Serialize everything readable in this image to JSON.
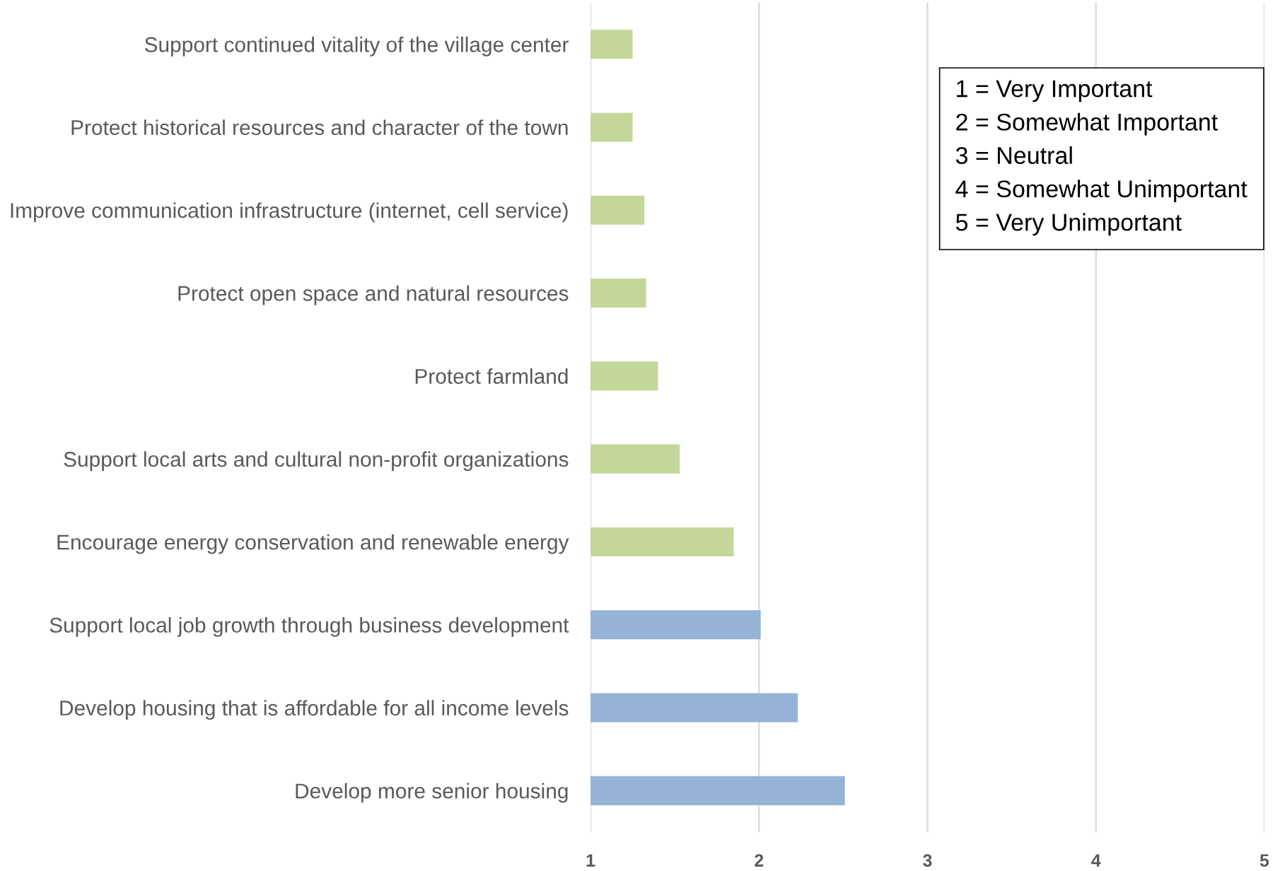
{
  "chart_data": {
    "type": "bar",
    "orientation": "horizontal",
    "categories": [
      "Support continued vitality of the village center",
      "Protect historical resources and character of the town",
      "Improve communication infrastructure (internet, cell service)",
      "Protect open space and natural resources",
      "Protect farmland",
      "Support local arts and cultural non-profit organizations",
      "Encourage energy conservation and renewable energy",
      "Support local job growth through business development",
      "Develop housing that is affordable for all income levels",
      "Develop more senior housing"
    ],
    "values": [
      1.25,
      1.25,
      1.32,
      1.33,
      1.4,
      1.53,
      1.85,
      2.01,
      2.23,
      2.51
    ],
    "colors": [
      "#c4d79b",
      "#c4d79b",
      "#c4d79b",
      "#c4d79b",
      "#c4d79b",
      "#c4d79b",
      "#c4d79b",
      "#95b3d7",
      "#95b3d7",
      "#95b3d7"
    ],
    "xlim": [
      1,
      5
    ],
    "xticks": [
      1,
      2,
      3,
      4,
      5
    ],
    "grid": "x",
    "annotations": [
      "1 = Very Important",
      "2 = Somewhat Important",
      "3 = Neutral",
      "4 = Somewhat Unimportant",
      "5 = Very Unimportant"
    ]
  }
}
